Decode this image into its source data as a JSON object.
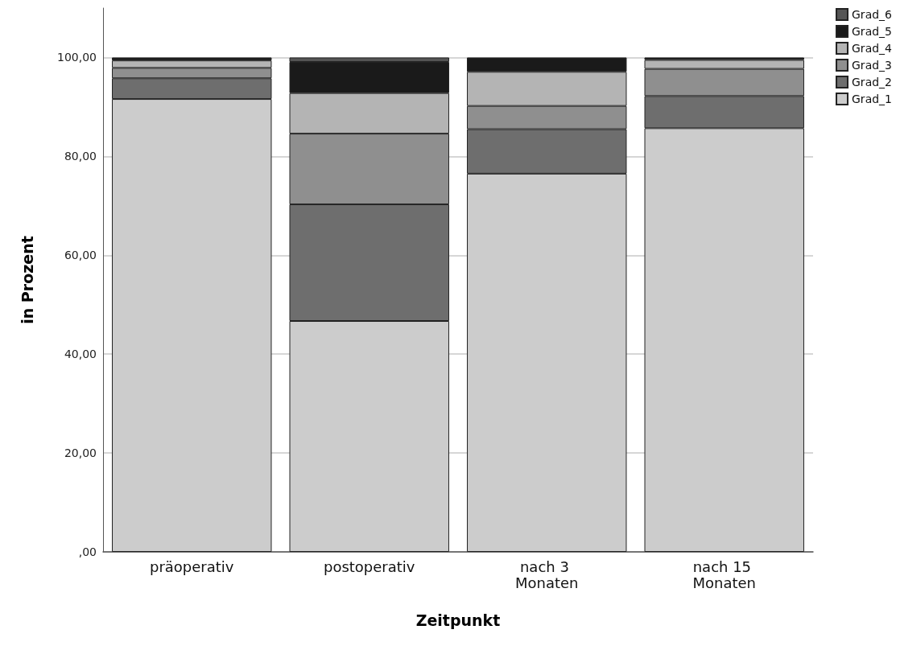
{
  "chart_data": {
    "type": "bar",
    "stacked": true,
    "xlabel": "Zeitpunkt",
    "ylabel": "in Prozent",
    "categories": [
      "präoperativ",
      "postoperativ",
      "nach 3 Monaten",
      "nach 15 Monaten"
    ],
    "series": [
      {
        "name": "Grad_1",
        "color": "#cccccc",
        "values": [
          91.6,
          46.7,
          76.5,
          85.7
        ]
      },
      {
        "name": "Grad_2",
        "color": "#6e6e6e",
        "values": [
          4.2,
          23.6,
          9.0,
          6.5
        ]
      },
      {
        "name": "Grad_3",
        "color": "#8f8f8f",
        "values": [
          2.1,
          14.3,
          4.7,
          5.5
        ]
      },
      {
        "name": "Grad_4",
        "color": "#b4b4b4",
        "values": [
          1.5,
          8.2,
          6.9,
          1.8
        ]
      },
      {
        "name": "Grad_5",
        "color": "#1a1a1a",
        "values": [
          0.6,
          6.3,
          2.9,
          0.5
        ]
      },
      {
        "name": "Grad_6",
        "color": "#555555",
        "values": [
          0,
          0.9,
          0,
          0
        ]
      }
    ],
    "ylim": [
      0,
      110
    ],
    "yticks": [
      {
        "value": 0,
        "label": ",00"
      },
      {
        "value": 20,
        "label": "20,00"
      },
      {
        "value": 40,
        "label": "40,00"
      },
      {
        "value": 60,
        "label": "60,00"
      },
      {
        "value": 80,
        "label": "80,00"
      },
      {
        "value": 100,
        "label": "100,00"
      }
    ],
    "grid": "y",
    "legend": "top right"
  }
}
